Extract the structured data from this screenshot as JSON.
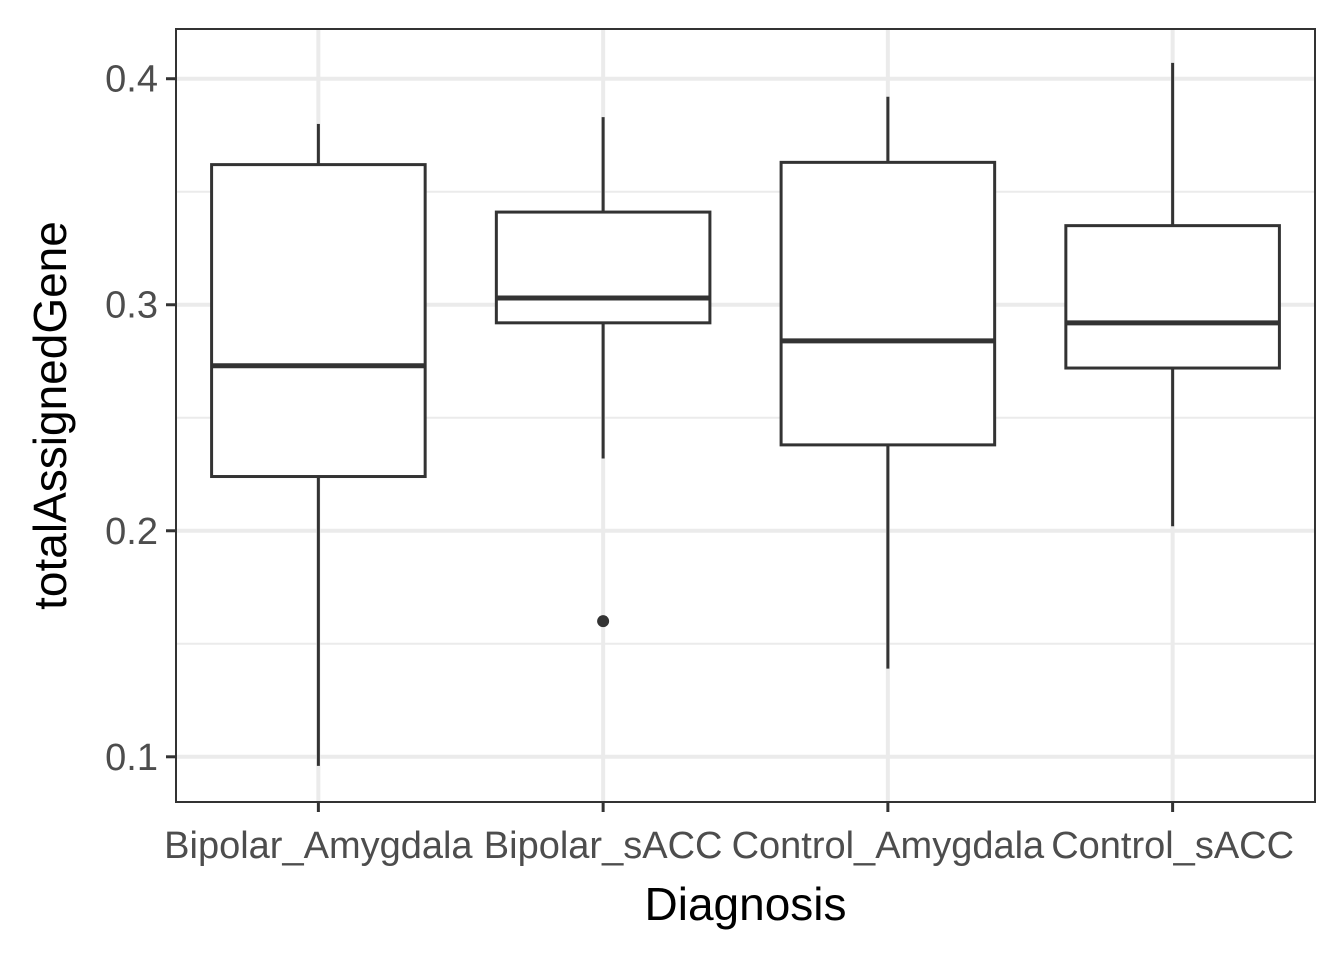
{
  "chart_data": {
    "type": "boxplot",
    "xlabel": "Diagnosis",
    "ylabel": "totalAssignedGene",
    "ylim": [
      0.08,
      0.422
    ],
    "yticks": [
      0.1,
      0.2,
      0.3,
      0.4
    ],
    "ytick_labels": [
      "0.1",
      "0.2",
      "0.3",
      "0.4"
    ],
    "yminor": [
      0.15,
      0.25,
      0.35
    ],
    "grid": true,
    "categories": [
      "Bipolar_Amygdala",
      "Bipolar_sACC",
      "Control_Amygdala",
      "Control_sACC"
    ],
    "boxes": [
      {
        "category": "Bipolar_Amygdala",
        "whisker_low": 0.096,
        "q1": 0.224,
        "median": 0.273,
        "q3": 0.362,
        "whisker_high": 0.38,
        "outliers": []
      },
      {
        "category": "Bipolar_sACC",
        "whisker_low": 0.232,
        "q1": 0.292,
        "median": 0.303,
        "q3": 0.341,
        "whisker_high": 0.383,
        "outliers": [
          0.16
        ]
      },
      {
        "category": "Control_Amygdala",
        "whisker_low": 0.139,
        "q1": 0.238,
        "median": 0.284,
        "q3": 0.363,
        "whisker_high": 0.392,
        "outliers": []
      },
      {
        "category": "Control_sACC",
        "whisker_low": 0.202,
        "q1": 0.272,
        "median": 0.292,
        "q3": 0.335,
        "whisker_high": 0.407,
        "outliers": []
      }
    ],
    "colors": {
      "box_line": "#333333",
      "grid": "#ebebeb",
      "panel_border": "#333333",
      "tick_text": "#4d4d4d"
    }
  }
}
